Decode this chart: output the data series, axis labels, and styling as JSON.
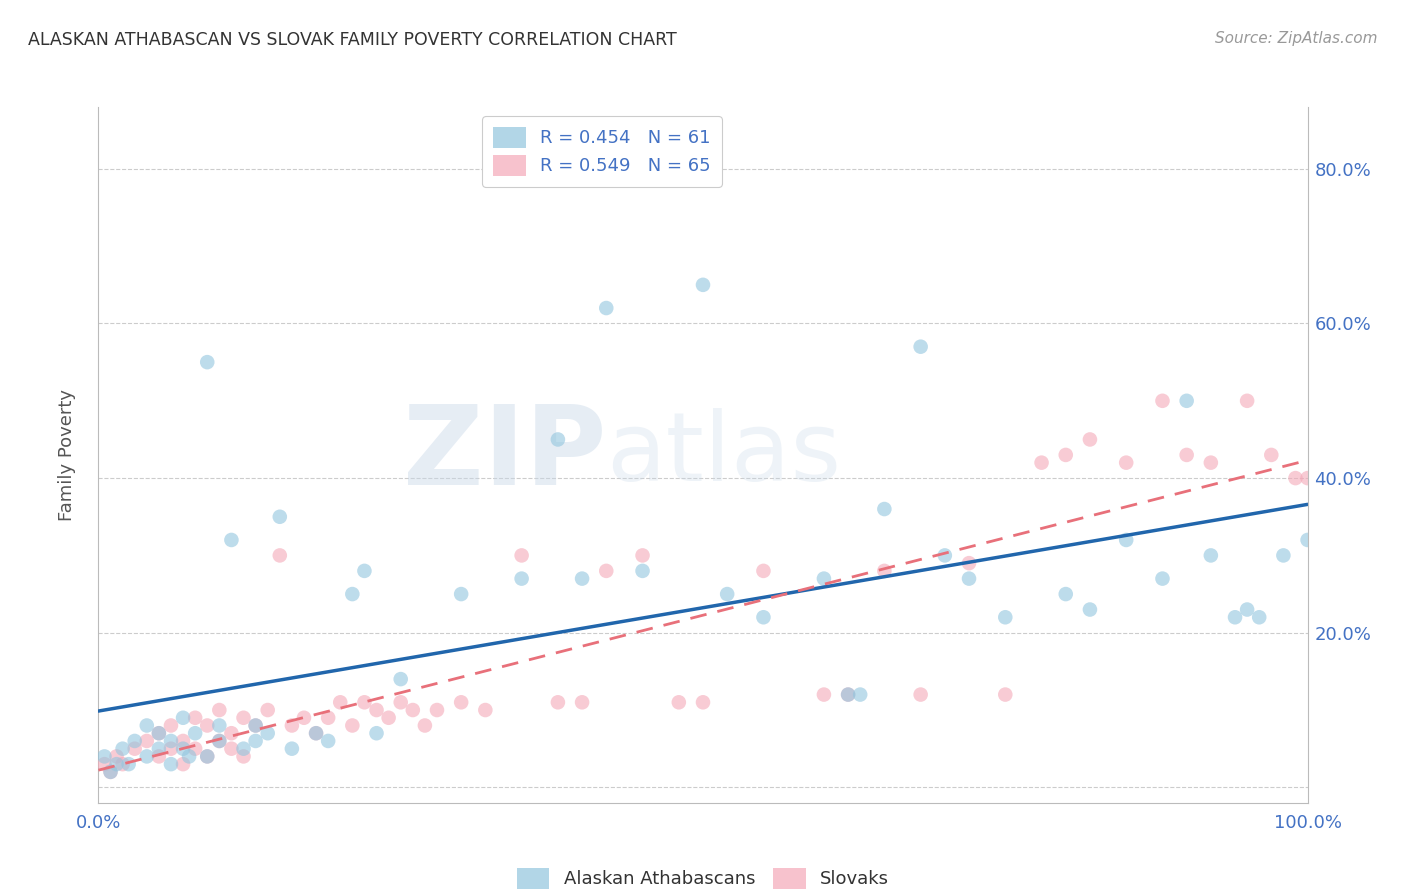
{
  "title": "ALASKAN ATHABASCAN VS SLOVAK FAMILY POVERTY CORRELATION CHART",
  "source": "Source: ZipAtlas.com",
  "ylabel": "Family Poverty",
  "xlabel": "",
  "legend_label1": "Alaskan Athabascans",
  "legend_label2": "Slovaks",
  "R1": 0.454,
  "N1": 61,
  "R2": 0.549,
  "N2": 65,
  "color1": "#92c5de",
  "color2": "#f4a9b8",
  "line_color1": "#2166ac",
  "line_color2": "#e8707a",
  "background": "#ffffff",
  "watermark_zip": "ZIP",
  "watermark_atlas": "atlas",
  "xlim": [
    0,
    1
  ],
  "ylim": [
    -0.02,
    0.88
  ],
  "xticks": [
    0,
    0.2,
    0.4,
    0.6,
    0.8,
    1.0
  ],
  "yticks": [
    0.0,
    0.2,
    0.4,
    0.6,
    0.8
  ],
  "xticklabels": [
    "0.0%",
    "",
    "",
    "",
    "",
    ""
  ],
  "right_yticklabels": [
    "",
    "20.0%",
    "40.0%",
    "60.0%",
    "80.0%"
  ],
  "blue_x": [
    0.005,
    0.01,
    0.015,
    0.02,
    0.025,
    0.03,
    0.04,
    0.04,
    0.05,
    0.05,
    0.06,
    0.06,
    0.07,
    0.07,
    0.075,
    0.08,
    0.09,
    0.09,
    0.1,
    0.1,
    0.11,
    0.12,
    0.13,
    0.13,
    0.14,
    0.15,
    0.16,
    0.18,
    0.19,
    0.21,
    0.22,
    0.23,
    0.25,
    0.3,
    0.35,
    0.38,
    0.4,
    0.42,
    0.45,
    0.5,
    0.52,
    0.55,
    0.6,
    0.62,
    0.63,
    0.65,
    0.68,
    0.7,
    0.72,
    0.75,
    0.8,
    0.82,
    0.85,
    0.88,
    0.9,
    0.92,
    0.94,
    0.95,
    0.96,
    0.98,
    1.0
  ],
  "blue_y": [
    0.04,
    0.02,
    0.03,
    0.05,
    0.03,
    0.06,
    0.04,
    0.08,
    0.05,
    0.07,
    0.03,
    0.06,
    0.05,
    0.09,
    0.04,
    0.07,
    0.55,
    0.04,
    0.06,
    0.08,
    0.32,
    0.05,
    0.06,
    0.08,
    0.07,
    0.35,
    0.05,
    0.07,
    0.06,
    0.25,
    0.28,
    0.07,
    0.14,
    0.25,
    0.27,
    0.45,
    0.27,
    0.62,
    0.28,
    0.65,
    0.25,
    0.22,
    0.27,
    0.12,
    0.12,
    0.36,
    0.57,
    0.3,
    0.27,
    0.22,
    0.25,
    0.23,
    0.32,
    0.27,
    0.5,
    0.3,
    0.22,
    0.23,
    0.22,
    0.3,
    0.32
  ],
  "pink_x": [
    0.005,
    0.01,
    0.015,
    0.02,
    0.03,
    0.04,
    0.05,
    0.05,
    0.06,
    0.06,
    0.07,
    0.07,
    0.08,
    0.08,
    0.09,
    0.09,
    0.1,
    0.1,
    0.11,
    0.11,
    0.12,
    0.12,
    0.13,
    0.14,
    0.15,
    0.16,
    0.17,
    0.18,
    0.19,
    0.2,
    0.21,
    0.22,
    0.23,
    0.24,
    0.25,
    0.26,
    0.27,
    0.28,
    0.3,
    0.32,
    0.35,
    0.38,
    0.4,
    0.42,
    0.45,
    0.48,
    0.5,
    0.55,
    0.6,
    0.62,
    0.65,
    0.68,
    0.72,
    0.75,
    0.78,
    0.8,
    0.82,
    0.85,
    0.88,
    0.9,
    0.92,
    0.95,
    0.97,
    0.99,
    1.0
  ],
  "pink_y": [
    0.03,
    0.02,
    0.04,
    0.03,
    0.05,
    0.06,
    0.04,
    0.07,
    0.05,
    0.08,
    0.06,
    0.03,
    0.05,
    0.09,
    0.04,
    0.08,
    0.06,
    0.1,
    0.05,
    0.07,
    0.09,
    0.04,
    0.08,
    0.1,
    0.3,
    0.08,
    0.09,
    0.07,
    0.09,
    0.11,
    0.08,
    0.11,
    0.1,
    0.09,
    0.11,
    0.1,
    0.08,
    0.1,
    0.11,
    0.1,
    0.3,
    0.11,
    0.11,
    0.28,
    0.3,
    0.11,
    0.11,
    0.28,
    0.12,
    0.12,
    0.28,
    0.12,
    0.29,
    0.12,
    0.42,
    0.43,
    0.45,
    0.42,
    0.5,
    0.43,
    0.42,
    0.5,
    0.43,
    0.4,
    0.4
  ]
}
